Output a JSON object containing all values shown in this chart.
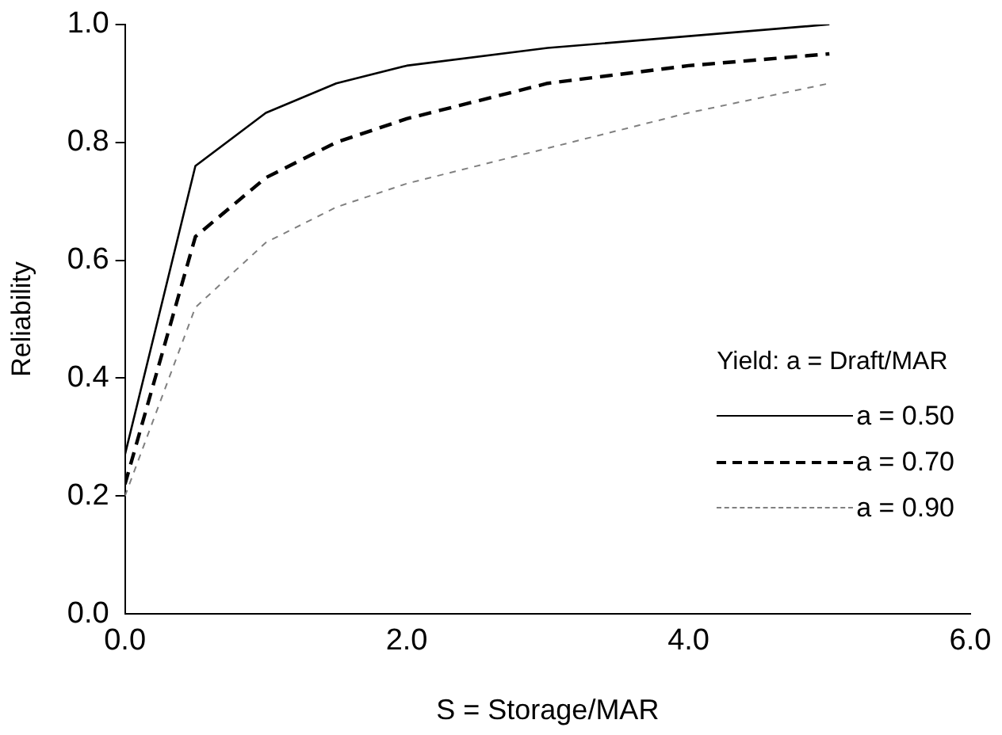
{
  "chart_data": {
    "type": "line",
    "xlabel": "S = Storage/MAR",
    "ylabel": "Reliability",
    "legend_title": "Yield: a = Draft/MAR",
    "legend": "right",
    "grid": false,
    "marker": "none",
    "xlim": [
      0,
      6
    ],
    "xticks": [
      {
        "value": 0,
        "label": "0.0"
      },
      {
        "value": 2,
        "label": "2.0"
      },
      {
        "value": 4,
        "label": "4.0"
      },
      {
        "value": 6,
        "label": "6.0"
      }
    ],
    "ylim": [
      0,
      1
    ],
    "yticks": [
      {
        "value": 0,
        "label": "0.0"
      },
      {
        "value": 0.2,
        "label": "0.2"
      },
      {
        "value": 0.4,
        "label": "0.4"
      },
      {
        "value": 0.6,
        "label": "0.6"
      },
      {
        "value": 0.8,
        "label": "0.8"
      },
      {
        "value": 1,
        "label": "1.0"
      }
    ],
    "series": [
      {
        "name": "a = 0.50",
        "color": "#000000",
        "line_style": "solid",
        "x": [
          0,
          0.5,
          1,
          1.5,
          2,
          3,
          5
        ],
        "values": [
          0.27,
          0.76,
          0.85,
          0.9,
          0.93,
          0.96,
          1.0
        ]
      },
      {
        "name": "a = 0.70",
        "color": "#000000",
        "line_style": "dashed",
        "x": [
          0,
          0.5,
          1,
          1.5,
          2,
          2.5,
          3,
          4,
          5
        ],
        "values": [
          0.22,
          0.64,
          0.74,
          0.8,
          0.84,
          0.87,
          0.9,
          0.93,
          0.95
        ]
      },
      {
        "name": "a = 0.90",
        "color": "#808080",
        "line_style": "dotted",
        "x": [
          0,
          0.5,
          1,
          1.5,
          2,
          3,
          4,
          5
        ],
        "values": [
          0.2,
          0.52,
          0.63,
          0.69,
          0.73,
          0.79,
          0.85,
          0.9
        ]
      }
    ]
  }
}
